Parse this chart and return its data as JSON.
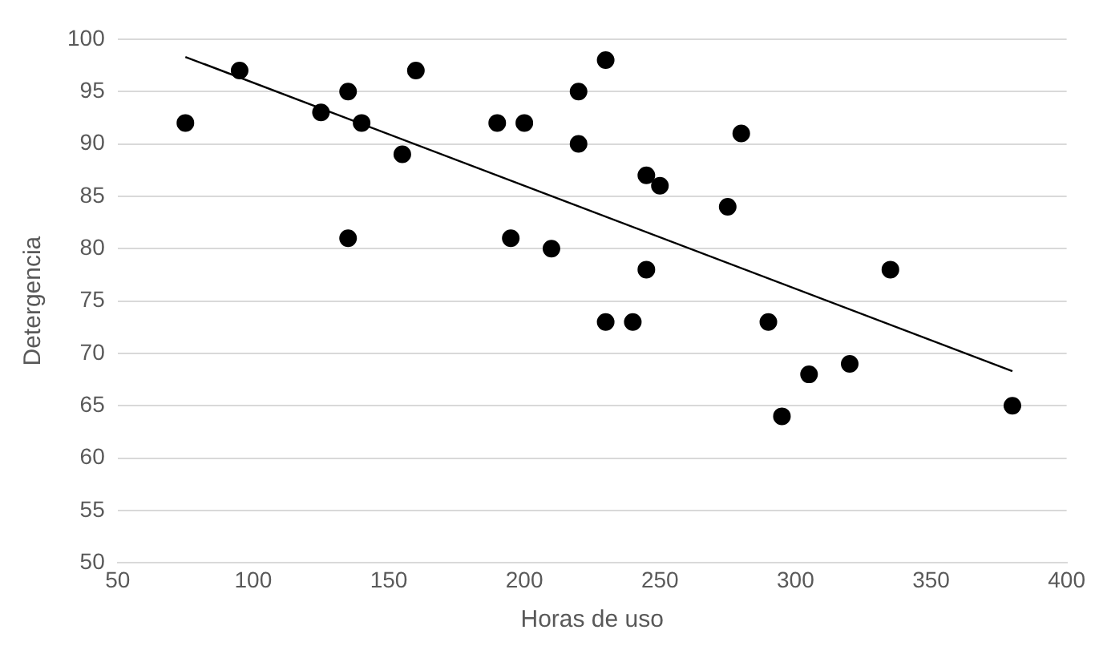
{
  "chart_data": {
    "type": "scatter",
    "xlabel": "Horas de uso",
    "ylabel": "Detergencia",
    "xlim": [
      50,
      400
    ],
    "xticks": [
      50,
      100,
      150,
      200,
      250,
      300,
      350,
      400
    ],
    "ylim": [
      50,
      100
    ],
    "yticks": [
      50,
      55,
      60,
      65,
      70,
      75,
      80,
      85,
      90,
      95,
      100
    ],
    "grid": "y",
    "legend": false,
    "marker": "circle",
    "series": [
      {
        "type": "scatter",
        "color": "#000000",
        "x": [
          75,
          95,
          125,
          135,
          135,
          140,
          155,
          160,
          190,
          195,
          200,
          210,
          220,
          220,
          230,
          230,
          240,
          245,
          245,
          250,
          275,
          280,
          290,
          295,
          305,
          320,
          335,
          380
        ],
        "values": [
          92,
          97,
          93,
          95,
          81,
          92,
          89,
          97,
          92,
          81,
          92,
          80,
          95,
          90,
          98,
          73,
          73,
          87,
          78,
          86,
          84,
          91,
          73,
          64,
          68,
          69,
          78,
          65
        ]
      },
      {
        "type": "line",
        "color": "#000000",
        "marker": "none",
        "line_style": "solid",
        "x": [
          75,
          380
        ],
        "values": [
          98.3,
          68.3
        ]
      }
    ]
  }
}
